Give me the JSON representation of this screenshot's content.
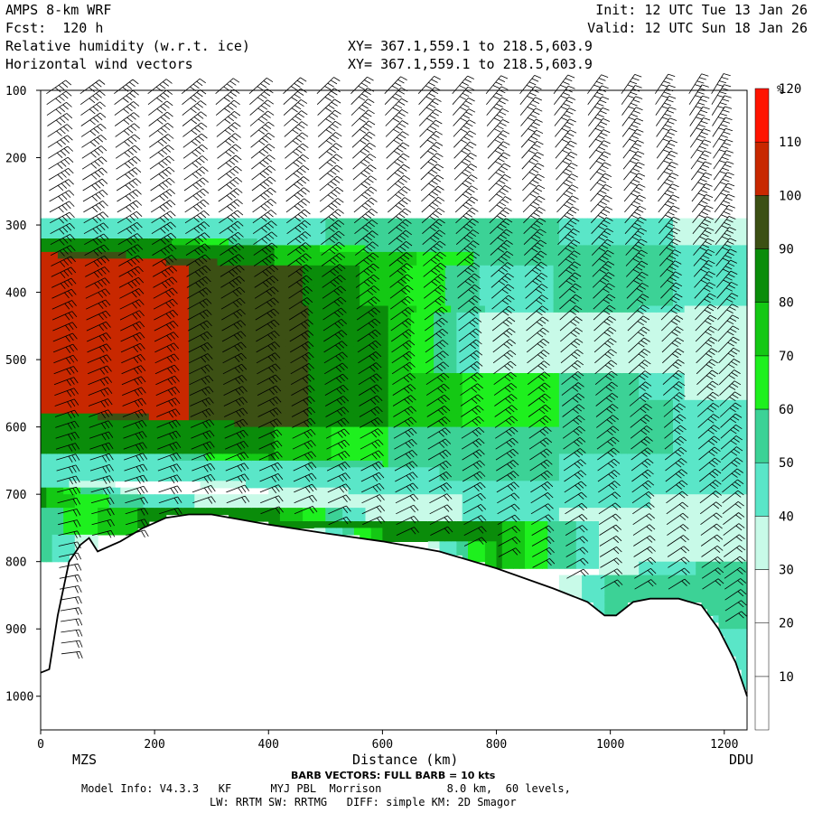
{
  "header": {
    "model": "AMPS 8-km WRF",
    "forecast": "Fcst:  120 h",
    "field1": "Relative humidity (w.r.t. ice)",
    "field2": "Horizontal wind vectors",
    "init": "Init: 12 UTC Tue 13 Jan 26",
    "valid": "Valid: 12 UTC Sun 18 Jan 26",
    "xy1": "XY= 367.1,559.1 to 218.5,603.9",
    "xy2": "XY= 367.1,559.1 to 218.5,603.9"
  },
  "footer": {
    "barb_note": "BARB VECTORS: FULL BARB = 10 kts",
    "model_info_1": "Model Info: V4.3.3   KF      MYJ PBL  Morrison          8.0 km,  60 levels,",
    "model_info_2": "LW: RRTM SW: RRTMG   DIFF: simple KM: 2D Smagor"
  },
  "colors": {
    "levels": [
      "#ffffff",
      "#ffffff",
      "#ffffff",
      "#c8fae8",
      "#5ae6c8",
      "#3cd296",
      "#1ef01e",
      "#14c814",
      "#0a8c0a",
      "#3c5014",
      "#c82800",
      "#ff1400"
    ]
  },
  "chart_data": {
    "type": "heatmap",
    "xlabel": "Distance (km)",
    "ylabel": "",
    "xlim": [
      0,
      1240
    ],
    "ylim": [
      1050,
      100
    ],
    "x_ticks": [
      0,
      200,
      400,
      600,
      800,
      1000,
      1200
    ],
    "y_ticks": [
      100,
      200,
      300,
      400,
      500,
      600,
      700,
      800,
      900,
      1000
    ],
    "left_label": "MZS",
    "right_label": "DDU",
    "colorbar": {
      "unit": "%",
      "levels": [
        10,
        20,
        30,
        40,
        50,
        60,
        70,
        80,
        90,
        100,
        110,
        120
      ]
    },
    "terrain_pressure": {
      "x": [
        0,
        15,
        30,
        50,
        70,
        85,
        100,
        140,
        180,
        220,
        260,
        300,
        400,
        500,
        600,
        700,
        800,
        900,
        960,
        990,
        1010,
        1040,
        1070,
        1120,
        1160,
        1190,
        1220,
        1240
      ],
      "p": [
        965,
        960,
        880,
        800,
        775,
        765,
        785,
        770,
        750,
        735,
        730,
        730,
        745,
        758,
        770,
        785,
        810,
        840,
        860,
        880,
        880,
        860,
        855,
        855,
        865,
        900,
        950,
        1000
      ]
    },
    "rh_profile": {
      "columns": [
        {
          "x": 0,
          "bands": [
            [
              285,
              320,
              45
            ],
            [
              320,
              340,
              85
            ],
            [
              340,
              580,
              102
            ],
            [
              580,
              640,
              80
            ],
            [
              640,
              690,
              45
            ],
            [
              690,
              720,
              80
            ],
            [
              720,
              800,
              55
            ]
          ]
        },
        {
          "x": 200,
          "bands": [
            [
              285,
              320,
              45
            ],
            [
              320,
              350,
              85
            ],
            [
              350,
              590,
              102
            ],
            [
              590,
              640,
              80
            ],
            [
              640,
              680,
              45
            ],
            [
              680,
              700,
              20
            ],
            [
              700,
              720,
              45
            ],
            [
              720,
              760,
              85
            ]
          ]
        },
        {
          "x": 400,
          "bands": [
            [
              285,
              330,
              45
            ],
            [
              330,
              360,
              80
            ],
            [
              360,
              600,
              95
            ],
            [
              600,
              650,
              80
            ],
            [
              650,
              690,
              45
            ],
            [
              690,
              720,
              30
            ],
            [
              720,
              750,
              85
            ]
          ]
        },
        {
          "x": 600,
          "bands": [
            [
              285,
              340,
              55
            ],
            [
              340,
              420,
              75
            ],
            [
              420,
              600,
              80
            ],
            [
              600,
              660,
              60
            ],
            [
              660,
              700,
              45
            ],
            [
              700,
              740,
              30
            ],
            [
              740,
              770,
              80
            ]
          ]
        },
        {
          "x": 800,
          "bands": [
            [
              285,
              360,
              55
            ],
            [
              360,
              430,
              45
            ],
            [
              430,
              520,
              30
            ],
            [
              520,
              600,
              65
            ],
            [
              600,
              680,
              55
            ],
            [
              680,
              740,
              45
            ],
            [
              740,
              810,
              80
            ]
          ]
        },
        {
          "x": 1000,
          "bands": [
            [
              285,
              330,
              45
            ],
            [
              330,
              430,
              55
            ],
            [
              430,
              520,
              30
            ],
            [
              520,
              640,
              55
            ],
            [
              640,
              720,
              45
            ],
            [
              720,
              820,
              35
            ],
            [
              820,
              880,
              55
            ]
          ]
        },
        {
          "x": 1200,
          "bands": [
            [
              285,
              330,
              35
            ],
            [
              330,
              420,
              45
            ],
            [
              420,
              560,
              30
            ],
            [
              560,
              700,
              45
            ],
            [
              700,
              800,
              30
            ],
            [
              800,
              900,
              55
            ],
            [
              900,
              1000,
              45
            ]
          ]
        }
      ]
    },
    "wind_barbs": {
      "note": "profiles every ~60 km; full barb = 10 kts",
      "x": [
        10,
        70,
        130,
        190,
        250,
        310,
        370,
        430,
        490,
        550,
        610,
        670,
        730,
        790,
        850,
        910,
        970,
        1030,
        1090,
        1150,
        1190
      ]
    }
  }
}
